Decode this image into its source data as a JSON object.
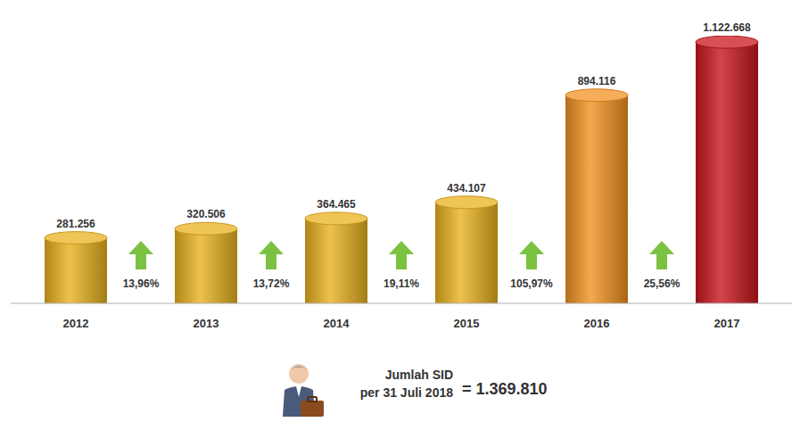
{
  "chart_data": {
    "type": "bar",
    "categories": [
      "2012",
      "2013",
      "2014",
      "2015",
      "2016",
      "2017"
    ],
    "values": [
      281256,
      320506,
      364465,
      434107,
      894116,
      1122668
    ],
    "value_labels": [
      "281.256",
      "320.506",
      "364.465",
      "434.107",
      "894.116",
      "1.122.668"
    ],
    "colors": [
      "#e9b21f",
      "#e9b21f",
      "#e9b21f",
      "#e9b21f",
      "#f39221",
      "#c8161d"
    ],
    "ylim": [
      0,
      1150000
    ],
    "data_labels": true,
    "tick_labels": "x",
    "grid": false,
    "growth": {
      "values": [
        13.96,
        13.72,
        19.11,
        105.97,
        25.56
      ],
      "value_labels": [
        "13,96%",
        "13,72%",
        "19,11%",
        "105,97%",
        "25,56%"
      ],
      "color": "#7cc242"
    },
    "note": {
      "label_lines": [
        "Jumlah SID",
        "per 31 Juli 2018"
      ],
      "value": 1369810,
      "value_label": "= 1.369.810"
    }
  }
}
